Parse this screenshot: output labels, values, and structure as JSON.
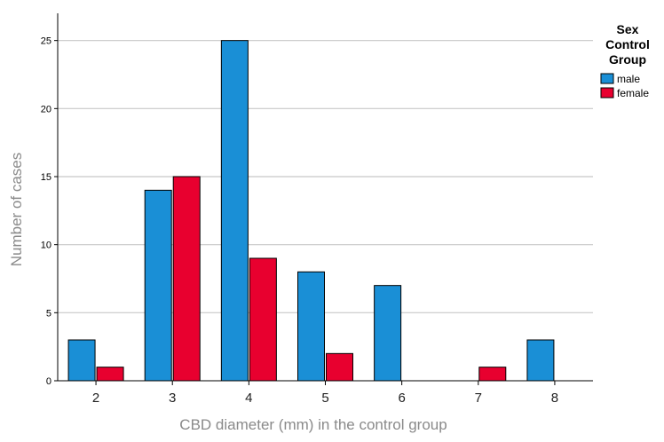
{
  "chart_data": {
    "type": "bar",
    "title": "",
    "xlabel": "CBD diameter (mm) in the control group",
    "ylabel": "Number of cases",
    "categories": [
      "2",
      "3",
      "4",
      "5",
      "6",
      "7",
      "8"
    ],
    "series": [
      {
        "name": "male",
        "values": [
          3,
          14,
          25,
          8,
          7,
          0,
          3
        ],
        "color": "#1a8fd6"
      },
      {
        "name": "female",
        "values": [
          1,
          15,
          9,
          2,
          0,
          1,
          0
        ],
        "color": "#e8002f"
      }
    ],
    "ylim": [
      0,
      27
    ],
    "yticks": [
      0,
      5,
      10,
      15,
      20,
      25
    ],
    "grid": true,
    "legend": {
      "title_lines": [
        "Sex",
        "Control",
        "Group"
      ],
      "placement": "top-right"
    }
  }
}
